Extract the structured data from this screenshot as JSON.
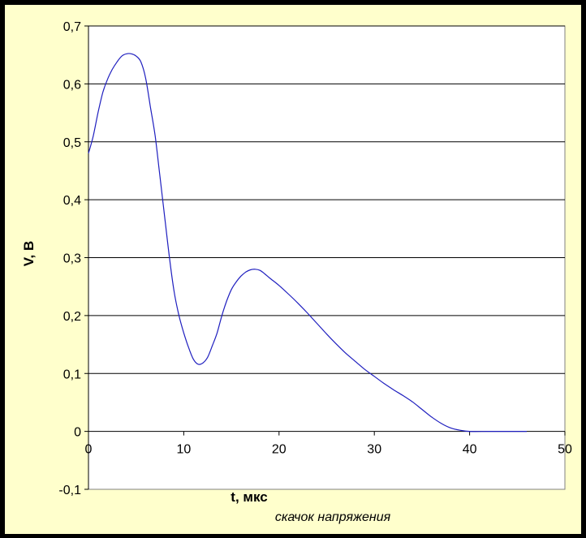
{
  "chart_data": {
    "type": "line",
    "xlabel": "t, мкс",
    "ylabel": "V, B",
    "caption": "скачок напряжения",
    "xlim": [
      0,
      50
    ],
    "ylim": [
      -0.1,
      0.7
    ],
    "x_ticks": [
      0,
      10,
      20,
      30,
      40,
      50
    ],
    "y_ticks": [
      -0.1,
      0,
      0.1,
      0.2,
      0.3,
      0.4,
      0.5,
      0.6,
      0.7
    ],
    "x_tick_labels": [
      "0",
      "10",
      "20",
      "30",
      "40",
      "50"
    ],
    "y_tick_labels": [
      "-0,1",
      "0",
      "0,1",
      "0,2",
      "0,3",
      "0,4",
      "0,5",
      "0,6",
      "0,7"
    ],
    "grid": "horizontal",
    "plot_background": "#ffffff",
    "frame_background": "#ffffcc",
    "line_color": "#1f1fbf",
    "series": [
      {
        "x": [
          0,
          0.5,
          1,
          1.5,
          2,
          2.5,
          3,
          3.5,
          4,
          4.5,
          5,
          5.5,
          6,
          6.5,
          7,
          7.5,
          8,
          8.5,
          9,
          9.5,
          10,
          10.5,
          11,
          11.5,
          12,
          12.5,
          13,
          13.5,
          14,
          14.5,
          15,
          15.5,
          16,
          16.5,
          17,
          17.5,
          18,
          18.5,
          19,
          20,
          21,
          22,
          23,
          24,
          25,
          26,
          27,
          28,
          29,
          30,
          31,
          32,
          33,
          34,
          35,
          36,
          37,
          38,
          39,
          40,
          42,
          44,
          46
        ],
        "y": [
          0.48,
          0.51,
          0.55,
          0.585,
          0.608,
          0.625,
          0.638,
          0.648,
          0.652,
          0.652,
          0.648,
          0.638,
          0.61,
          0.56,
          0.51,
          0.44,
          0.37,
          0.3,
          0.24,
          0.2,
          0.17,
          0.145,
          0.125,
          0.116,
          0.118,
          0.128,
          0.148,
          0.17,
          0.2,
          0.225,
          0.245,
          0.258,
          0.268,
          0.275,
          0.279,
          0.28,
          0.278,
          0.272,
          0.265,
          0.252,
          0.237,
          0.221,
          0.204,
          0.186,
          0.168,
          0.151,
          0.135,
          0.121,
          0.107,
          0.095,
          0.083,
          0.072,
          0.062,
          0.051,
          0.038,
          0.025,
          0.014,
          0.006,
          0.002,
          0.0,
          0.0,
          0.0,
          0.0
        ]
      }
    ]
  }
}
